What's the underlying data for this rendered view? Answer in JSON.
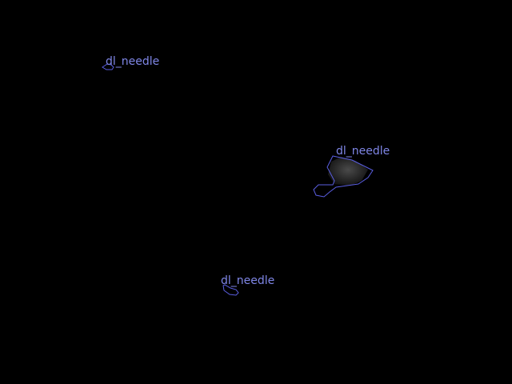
{
  "image": {
    "background_color": "#000000",
    "annotation_color": "#5a5ee0",
    "annotations": [
      {
        "label": "dl_needle"
      },
      {
        "label": "dl_needle"
      },
      {
        "label": "dl_needle"
      }
    ]
  }
}
